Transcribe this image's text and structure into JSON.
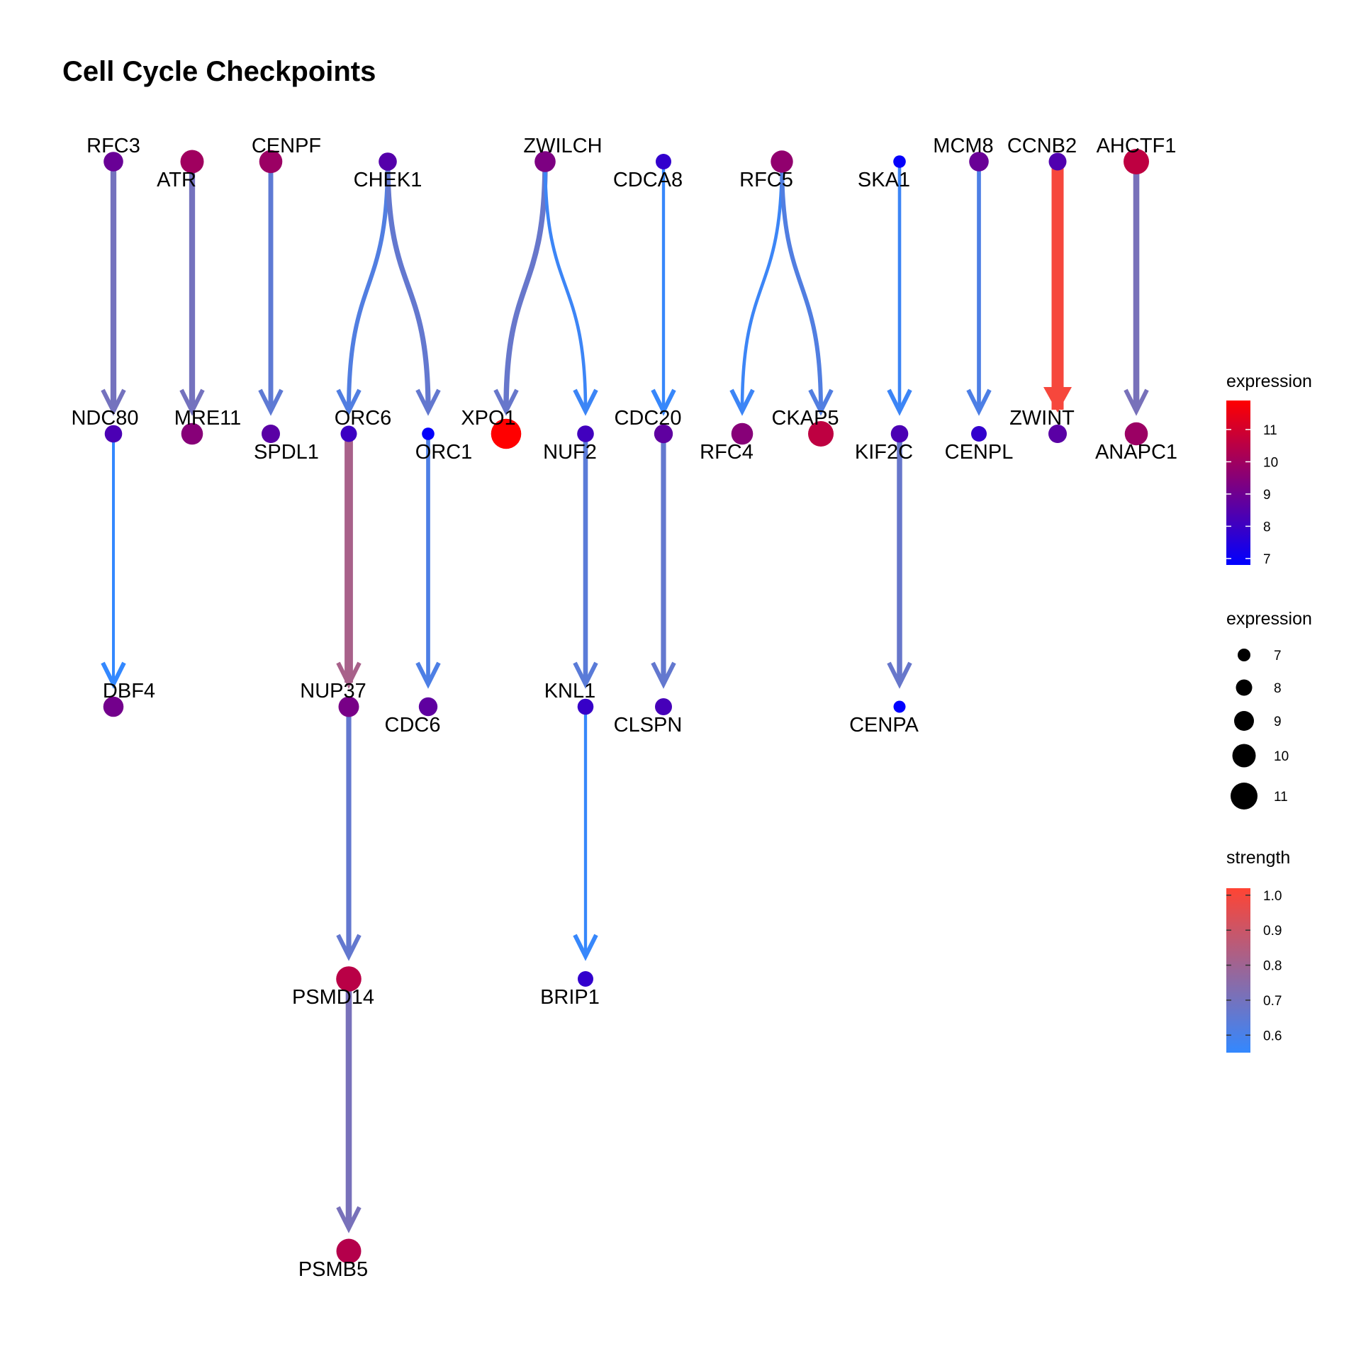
{
  "title": "Cell Cycle Checkpoints",
  "colors": {
    "expression_low": "#0000ff",
    "expression_high": "#ff0000",
    "strength_low": "#3388ff",
    "strength_high": "#ff4433"
  },
  "nodes": [
    {
      "id": "RFC3",
      "label": "RFC3",
      "expression": 8.9
    },
    {
      "id": "ATR",
      "label": "ATR",
      "expression": 10.0
    },
    {
      "id": "CENPF",
      "label": "CENPF",
      "expression": 9.9
    },
    {
      "id": "CHEK1",
      "label": "CHEK1",
      "expression": 8.5
    },
    {
      "id": "ZWILCH",
      "label": "ZWILCH",
      "expression": 9.3
    },
    {
      "id": "CDCA8",
      "label": "CDCA8",
      "expression": 7.8
    },
    {
      "id": "RFC5",
      "label": "RFC5",
      "expression": 9.7
    },
    {
      "id": "SKA1",
      "label": "SKA1",
      "expression": 6.9
    },
    {
      "id": "MCM8",
      "label": "MCM8",
      "expression": 8.9
    },
    {
      "id": "CCNB2",
      "label": "CCNB2",
      "expression": 8.4
    },
    {
      "id": "AHCTF1",
      "label": "AHCTF1",
      "expression": 10.6
    },
    {
      "id": "NDC80",
      "label": "NDC80",
      "expression": 8.3
    },
    {
      "id": "MRE11",
      "label": "MRE11",
      "expression": 9.5
    },
    {
      "id": "SPDL1",
      "label": "SPDL1",
      "expression": 8.6
    },
    {
      "id": "ORC6",
      "label": "ORC6",
      "expression": 8.0
    },
    {
      "id": "ORC1",
      "label": "ORC1",
      "expression": 6.9
    },
    {
      "id": "XPO1",
      "label": "XPO1",
      "expression": 11.9
    },
    {
      "id": "NUF2",
      "label": "NUF2",
      "expression": 8.1
    },
    {
      "id": "CDC20",
      "label": "CDC20",
      "expression": 8.7
    },
    {
      "id": "RFC4",
      "label": "RFC4",
      "expression": 9.5
    },
    {
      "id": "CKAP5",
      "label": "CKAP5",
      "expression": 10.6
    },
    {
      "id": "KIF2C",
      "label": "KIF2C",
      "expression": 8.3
    },
    {
      "id": "CENPL",
      "label": "CENPL",
      "expression": 7.8
    },
    {
      "id": "ZWINT",
      "label": "ZWINT",
      "expression": 8.6
    },
    {
      "id": "ANAPC1",
      "label": "ANAPC1",
      "expression": 9.9
    },
    {
      "id": "DBF4",
      "label": "DBF4",
      "expression": 9.1
    },
    {
      "id": "NUP37",
      "label": "NUP37",
      "expression": 9.2
    },
    {
      "id": "CDC6",
      "label": "CDC6",
      "expression": 8.7
    },
    {
      "id": "KNL1",
      "label": "KNL1",
      "expression": 7.9
    },
    {
      "id": "CLSPN",
      "label": "CLSPN",
      "expression": 8.2
    },
    {
      "id": "CENPA",
      "label": "CENPA",
      "expression": 6.8
    },
    {
      "id": "PSMD14",
      "label": "PSMD14",
      "expression": 10.5
    },
    {
      "id": "BRIP1",
      "label": "BRIP1",
      "expression": 7.8
    },
    {
      "id": "PSMB5",
      "label": "PSMB5",
      "expression": 10.4
    }
  ],
  "edges": [
    {
      "from": "RFC3",
      "to": "NDC80",
      "strength": 0.7
    },
    {
      "from": "ATR",
      "to": "MRE11",
      "strength": 0.7
    },
    {
      "from": "CENPF",
      "to": "SPDL1",
      "strength": 0.65
    },
    {
      "from": "CHEK1",
      "to": "ORC6",
      "strength": 0.62
    },
    {
      "from": "CHEK1",
      "to": "ORC1",
      "strength": 0.66
    },
    {
      "from": "ZWILCH",
      "to": "XPO1",
      "strength": 0.67
    },
    {
      "from": "ZWILCH",
      "to": "NUF2",
      "strength": 0.57
    },
    {
      "from": "CDCA8",
      "to": "CDC20",
      "strength": 0.56
    },
    {
      "from": "RFC5",
      "to": "RFC4",
      "strength": 0.57
    },
    {
      "from": "RFC5",
      "to": "CKAP5",
      "strength": 0.62
    },
    {
      "from": "SKA1",
      "to": "KIF2C",
      "strength": 0.57
    },
    {
      "from": "MCM8",
      "to": "CENPL",
      "strength": 0.61
    },
    {
      "from": "CCNB2",
      "to": "ZWINT",
      "strength": 1.0
    },
    {
      "from": "AHCTF1",
      "to": "ANAPC1",
      "strength": 0.71
    },
    {
      "from": "NDC80",
      "to": "DBF4",
      "strength": 0.55
    },
    {
      "from": "ORC6",
      "to": "NUP37",
      "strength": 0.82
    },
    {
      "from": "ORC1",
      "to": "CDC6",
      "strength": 0.61
    },
    {
      "from": "NUF2",
      "to": "KNL1",
      "strength": 0.64
    },
    {
      "from": "CDC20",
      "to": "CLSPN",
      "strength": 0.66
    },
    {
      "from": "KIF2C",
      "to": "CENPA",
      "strength": 0.67
    },
    {
      "from": "NUP37",
      "to": "PSMD14",
      "strength": 0.66
    },
    {
      "from": "KNL1",
      "to": "BRIP1",
      "strength": 0.56
    },
    {
      "from": "PSMD14",
      "to": "PSMB5",
      "strength": 0.71
    }
  ],
  "legends": {
    "expression_color": {
      "title": "expression",
      "range": [
        6.8,
        11.9
      ],
      "ticks": [
        "7",
        "8",
        "9",
        "10",
        "11"
      ]
    },
    "expression_size": {
      "title": "expression",
      "values": [
        "7",
        "8",
        "9",
        "10",
        "11"
      ]
    },
    "strength": {
      "title": "strength",
      "range": [
        0.55,
        1.02
      ],
      "ticks": [
        "0.6",
        "0.7",
        "0.8",
        "0.9",
        "1.0"
      ]
    }
  }
}
